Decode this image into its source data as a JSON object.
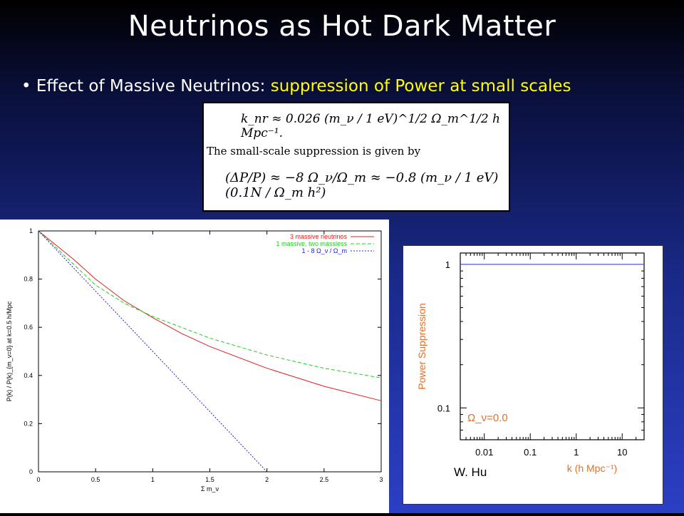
{
  "slide": {
    "title": "Neutrinos as Hot Dark Matter",
    "bullet_prefix": "• Effect of Massive Neutrinos: ",
    "bullet_highlight": "suppression of Power at small scales",
    "credit": "W. Hu"
  },
  "formula": {
    "line1": "k_nr ≈ 0.026 (m_ν / 1 eV)^1/2 Ω_m^1/2 h Mpc⁻¹.",
    "line2": "The small-scale suppression is given by",
    "line3": "(ΔP/P) ≈ −8 Ω_ν/Ω_m ≈ −0.8 (m_ν / 1 eV)(0.1N / Ω_m h²)"
  },
  "colors": {
    "massive3": "#e02020",
    "one_massive": "#20d020",
    "linear": "#2020d0",
    "hu_line": "#3050d0",
    "hu_text": "#e0702a"
  },
  "chart_data": [
    {
      "type": "line",
      "title": "",
      "xlabel": "Σ m_ν",
      "ylabel": "P(k) / P(k)_{m_ν=0}   at   k=0.5 h/Mpc",
      "xlim": [
        0,
        3
      ],
      "ylim": [
        0,
        1
      ],
      "xticks": [
        "0",
        "0.5",
        "1",
        "1.5",
        "2",
        "2.5",
        "3"
      ],
      "yticks": [
        "0",
        "0.2",
        "0.4",
        "0.6",
        "0.8",
        "1"
      ],
      "legend_position": "top-right",
      "series": [
        {
          "name": "3 massive neutrinos",
          "style": "solid",
          "color": "#e02020",
          "x": [
            0,
            0.3,
            0.5,
            0.75,
            1.0,
            1.25,
            1.5,
            2.0,
            2.5,
            3.0
          ],
          "y": [
            1.0,
            0.885,
            0.8,
            0.71,
            0.64,
            0.575,
            0.52,
            0.43,
            0.355,
            0.295
          ]
        },
        {
          "name": "1 massive, two massless",
          "style": "dashed",
          "color": "#20d020",
          "x": [
            0,
            0.3,
            0.5,
            0.75,
            1.0,
            1.25,
            1.5,
            2.0,
            2.5,
            3.0
          ],
          "y": [
            1.0,
            0.865,
            0.775,
            0.7,
            0.645,
            0.6,
            0.555,
            0.485,
            0.43,
            0.39
          ]
        },
        {
          "name": "1 - 8 Ω_ν / Ω_m",
          "style": "dotted",
          "color": "#2020d0",
          "x": [
            0,
            2.0
          ],
          "y": [
            1.0,
            0.0
          ]
        }
      ]
    },
    {
      "type": "line",
      "title": "",
      "xlabel": "k (h Mpc⁻¹)",
      "ylabel": "Power Suppression",
      "x_scale": "log",
      "y_scale": "log",
      "xlim": [
        0.003,
        30
      ],
      "ylim": [
        0.06,
        1.2
      ],
      "xticks": [
        "0.01",
        "0.1",
        "1",
        "10"
      ],
      "yticks": [
        "0.1",
        "1"
      ],
      "annotation": "Ω_ν=0.0",
      "series": [
        {
          "name": "Ω_ν=0.0",
          "style": "solid",
          "color": "#3050d0",
          "x": [
            0.003,
            30
          ],
          "y": [
            1,
            1
          ]
        }
      ]
    }
  ]
}
